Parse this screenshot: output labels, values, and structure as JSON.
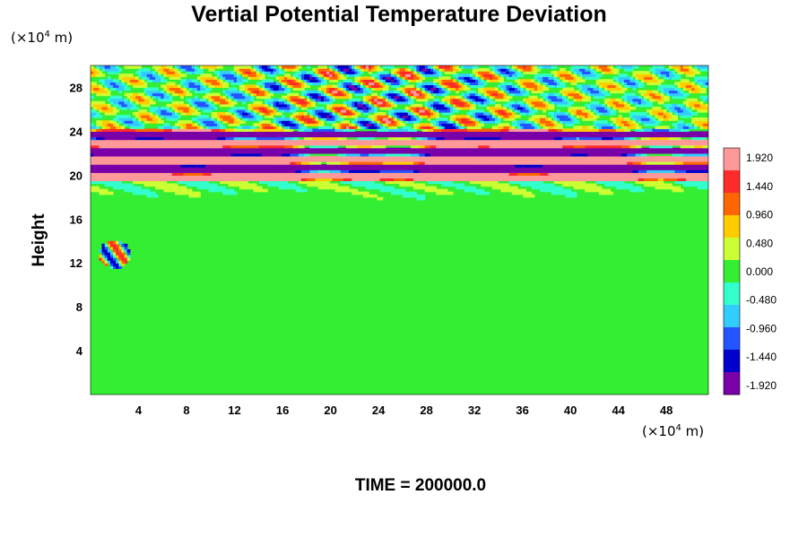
{
  "chart_data": {
    "type": "heatmap",
    "title": "Vertial Potential Temperature Deviation",
    "ylabel": "Height",
    "y_unit_prefix": "(×10",
    "y_unit_exp": "4",
    "y_unit_suffix": " m)",
    "x_unit_prefix": "(×10",
    "x_unit_exp": "4",
    "x_unit_suffix": " m)",
    "xlim": [
      0,
      51.5
    ],
    "ylim": [
      0,
      30
    ],
    "x_ticks": [
      4,
      8,
      12,
      16,
      20,
      24,
      28,
      32,
      36,
      40,
      44,
      48
    ],
    "y_ticks": [
      4,
      8,
      12,
      16,
      20,
      24,
      28
    ],
    "colorbar": {
      "min": -2.08,
      "max": 2.08,
      "ticks": [
        1.92,
        1.44,
        0.96,
        0.48,
        0.0,
        -0.48,
        -0.96,
        -1.44,
        -1.92
      ],
      "tick_labels": [
        "1.920",
        "1.440",
        "0.960",
        "0.480",
        "0.000",
        "-0.480",
        "-0.960",
        "-1.440",
        "-1.920"
      ],
      "colors_high_to_low": [
        "#ff9999",
        "#ff2a2a",
        "#ff6600",
        "#ffcc00",
        "#ccff33",
        "#33ee33",
        "#33ffcc",
        "#33ccff",
        "#2255ff",
        "#0000cc",
        "#7a00a8"
      ]
    },
    "features": [
      {
        "description_of_region": "layered bands",
        "y_range": [
          19.5,
          24
        ],
        "alternating_values": [
          2.0,
          -2.0
        ]
      },
      {
        "description_of_region": "wave packet",
        "y_range": [
          24,
          30
        ],
        "amplitude": 1.6
      },
      {
        "description_of_region": "background",
        "y_range": [
          0,
          19.5
        ],
        "value": 0.0
      },
      {
        "description_of_region": "warm patch",
        "x_center": 2.0,
        "y_center": 12.8,
        "value": 1.6
      }
    ]
  },
  "time_label": "TIME = 200000.0"
}
